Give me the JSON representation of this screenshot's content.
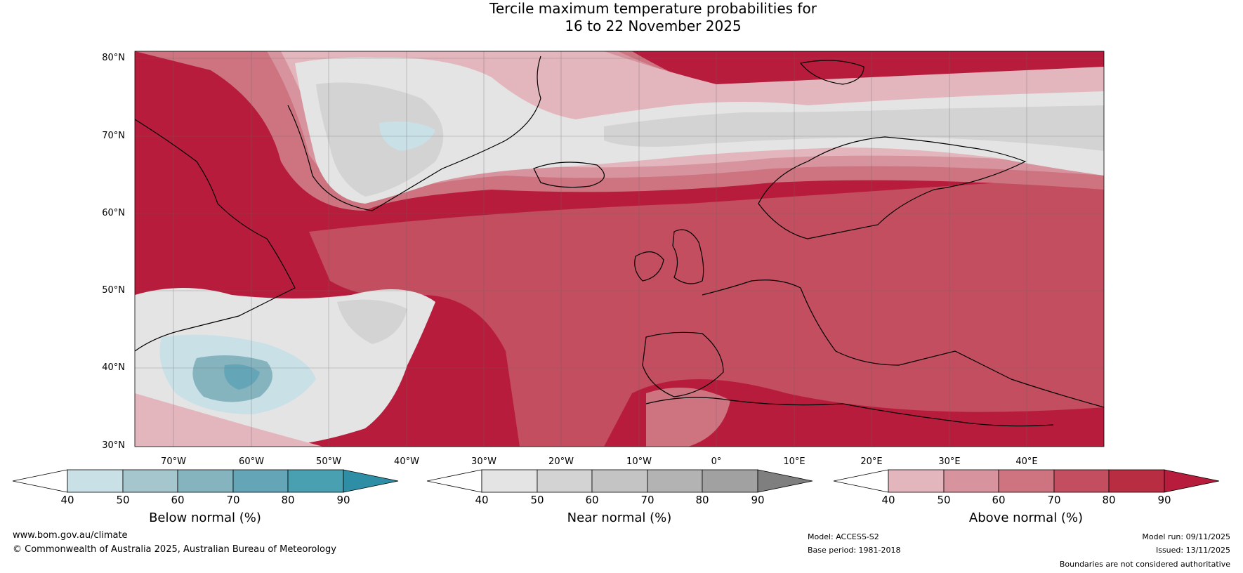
{
  "title_line1": "Tercile maximum temperature probabilities for",
  "title_line2": "16 to 22 November 2025",
  "map": {
    "lat_labels": [
      "80°N",
      "70°N",
      "60°N",
      "50°N",
      "40°N",
      "30°N"
    ],
    "lon_labels": [
      "70°W",
      "60°W",
      "50°W",
      "40°W",
      "30°W",
      "20°W",
      "10°W",
      "0°",
      "10°E",
      "20°E",
      "30°E",
      "40°E"
    ],
    "colors": {
      "above": [
        "#e3b6bd",
        "#d8949e",
        "#cd7480",
        "#c24e60",
        "#b81c3c"
      ],
      "near": [
        "#e4e4e4",
        "#d3d3d3",
        "#c4c4c4",
        "#b3b3b3",
        "#a1a1a1",
        "#7f7f7f"
      ],
      "below": [
        "#c8e0e6",
        "#a5c6cc",
        "#86b4be",
        "#64a6b8",
        "#48a0b0",
        "#2e8ea6"
      ]
    }
  },
  "colorbars": [
    {
      "label": "Below normal (%)",
      "ticks": [
        "40",
        "50",
        "60",
        "70",
        "80",
        "90"
      ],
      "colors": [
        "#ffffff",
        "#c8e0e6",
        "#a5c6cc",
        "#86b4be",
        "#64a6b8",
        "#48a0b0",
        "#2e8ea6"
      ]
    },
    {
      "label": "Near normal (%)",
      "ticks": [
        "40",
        "50",
        "60",
        "70",
        "80",
        "90"
      ],
      "colors": [
        "#ffffff",
        "#e4e4e4",
        "#d3d3d3",
        "#c4c4c4",
        "#b3b3b3",
        "#a1a1a1",
        "#7f7f7f"
      ]
    },
    {
      "label": "Above normal (%)",
      "ticks": [
        "40",
        "50",
        "60",
        "70",
        "80",
        "90"
      ],
      "colors": [
        "#ffffff",
        "#e3b6bd",
        "#d8949e",
        "#cd7480",
        "#c24e60",
        "#b92d42",
        "#b81c3c"
      ]
    }
  ],
  "footer": {
    "website": "www.bom.gov.au/climate",
    "copyright": "© Commonwealth of Australia 2025, Australian Bureau of Meteorology",
    "model": "Model: ACCESS-S2",
    "base_period": "Base period: 1981-2018",
    "model_run": "Model run: 09/11/2025",
    "issued": "Issued: 13/11/2025",
    "disclaimer": "Boundaries are not considered authoritative"
  }
}
